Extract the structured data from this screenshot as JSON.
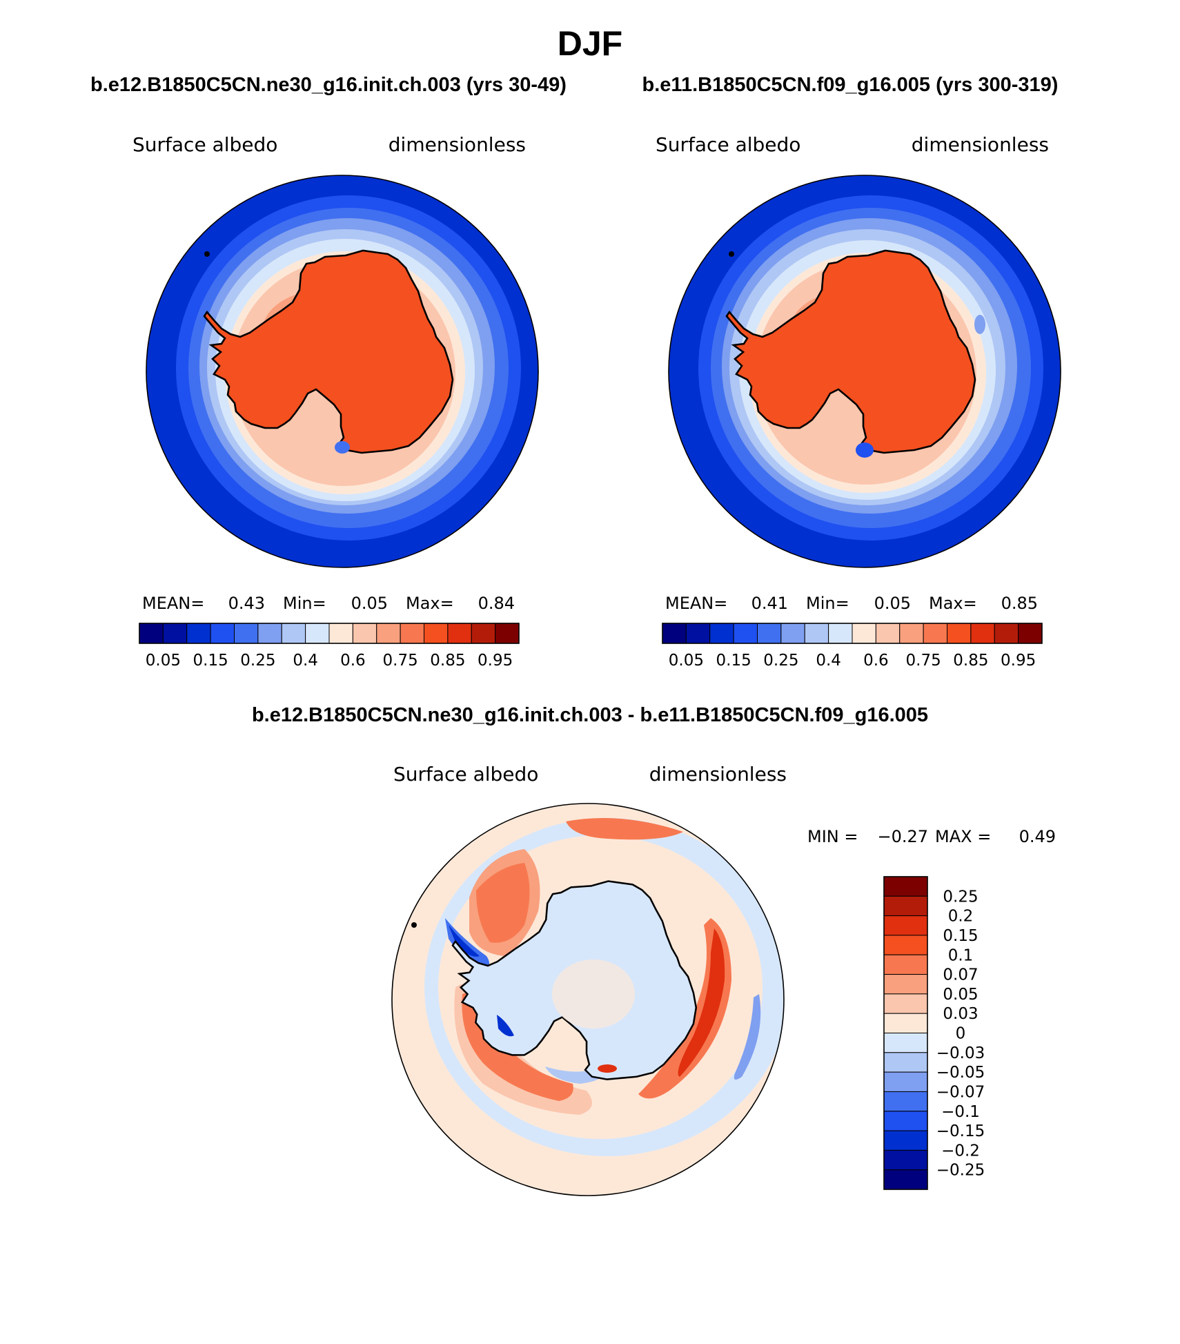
{
  "figure": {
    "title": "DJF"
  },
  "panels": [
    {
      "case_title": "b.e12.B1850C5CN.ne30_g16.init.ch.003 (yrs 30-49)",
      "variable": "Surface albedo",
      "units": "dimensionless",
      "stats": {
        "mean_label": "MEAN=",
        "mean": "0.43",
        "min_label": "Min=",
        "min": "0.05",
        "max_label": "Max=",
        "max": "0.84"
      },
      "ice_variant": 0
    },
    {
      "case_title": "b.e11.B1850C5CN.f09_g16.005 (yrs 300-319)",
      "variable": "Surface albedo",
      "units": "dimensionless",
      "stats": {
        "mean_label": "MEAN=",
        "mean": "0.41",
        "min_label": "Min=",
        "min": "0.05",
        "max_label": "Max=",
        "max": "0.85"
      },
      "ice_variant": 1
    }
  ],
  "colorbar_abs": {
    "colors": [
      "#00007f",
      "#0010a0",
      "#0030d0",
      "#1f50f0",
      "#4070f0",
      "#7f9ff0",
      "#afc7f5",
      "#d7e7fb",
      "#fde8d8",
      "#fbc6ae",
      "#f9a07e",
      "#f77850",
      "#f45020",
      "#e03010",
      "#b41c0a",
      "#7d0000"
    ],
    "tick_labels": [
      "0.05",
      "0.15",
      "0.25",
      "0.4",
      "0.6",
      "0.75",
      "0.85",
      "0.95"
    ]
  },
  "diff": {
    "title": "b.e12.B1850C5CN.ne30_g16.init.ch.003 - b.e11.B1850C5CN.f09_g16.005",
    "variable": "Surface albedo",
    "units": "dimensionless",
    "stats": {
      "min_label": "MIN =",
      "min": "−0.27",
      "max_label": "MAX =",
      "max": "0.49"
    }
  },
  "colorbar_diff": {
    "colors": [
      "#7d0000",
      "#b41c0a",
      "#e03010",
      "#f45020",
      "#f77850",
      "#f9a07e",
      "#fbc6ae",
      "#fde8d8",
      "#d7e7fb",
      "#afc7f5",
      "#7f9ff0",
      "#4070f0",
      "#1f50f0",
      "#0030d0",
      "#0010a0",
      "#00007f"
    ],
    "tick_labels": [
      "0.25",
      "0.2",
      "0.15",
      "0.1",
      "0.07",
      "0.05",
      "0.03",
      "0",
      "−0.03",
      "−0.05",
      "−0.07",
      "−0.1",
      "−0.15",
      "−0.2",
      "−0.25"
    ]
  }
}
